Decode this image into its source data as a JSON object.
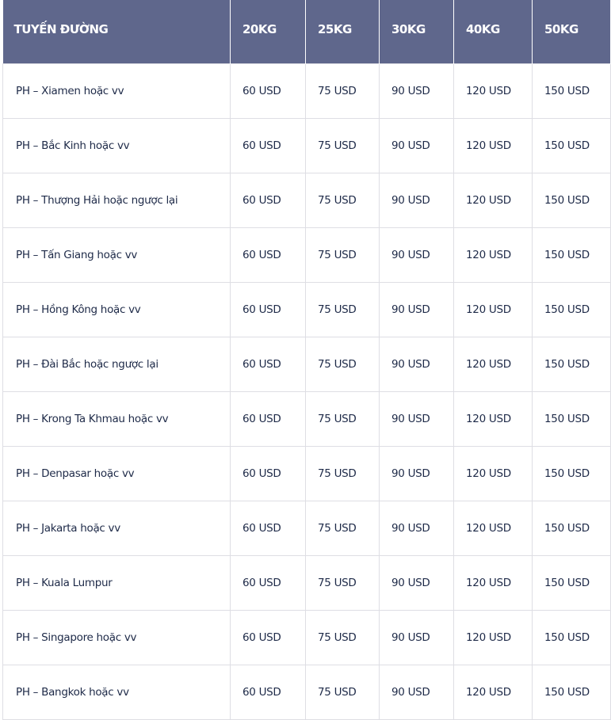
{
  "table": {
    "headers": [
      "TUYẾN ĐƯỜNG",
      "20KG",
      "25KG",
      "30KG",
      "40KG",
      "50KG"
    ],
    "rows": [
      [
        "PH – Xiamen hoặc vv",
        "60 USD",
        "75 USD",
        "90 USD",
        "120 USD",
        "150 USD"
      ],
      [
        "PH – Bắc Kinh hoặc vv",
        "60 USD",
        "75 USD",
        "90 USD",
        "120 USD",
        "150 USD"
      ],
      [
        "PH – Thượng Hải hoặc ngược lại",
        "60 USD",
        "75 USD",
        "90 USD",
        "120 USD",
        "150 USD"
      ],
      [
        "PH – Tấn Giang hoặc vv",
        "60 USD",
        "75 USD",
        "90 USD",
        "120 USD",
        "150 USD"
      ],
      [
        "PH – Hồng Kông hoặc vv",
        "60 USD",
        "75 USD",
        "90 USD",
        "120 USD",
        "150 USD"
      ],
      [
        "PH – Đài Bắc hoặc ngược lại",
        "60 USD",
        "75 USD",
        "90 USD",
        "120 USD",
        "150 USD"
      ],
      [
        "PH – Krong Ta Khmau hoặc vv",
        "60 USD",
        "75 USD",
        "90 USD",
        "120 USD",
        "150 USD"
      ],
      [
        "PH – Denpasar hoặc vv",
        "60 USD",
        "75 USD",
        "90 USD",
        "120 USD",
        "150 USD"
      ],
      [
        "PH – Jakarta hoặc vv",
        "60 USD",
        "75 USD",
        "90 USD",
        "120 USD",
        "150 USD"
      ],
      [
        "PH – Kuala Lumpur",
        "60 USD",
        "75 USD",
        "90 USD",
        "120 USD",
        "150 USD"
      ],
      [
        "PH – Singapore hoặc vv",
        "60 USD",
        "75 USD",
        "90 USD",
        "120 USD",
        "150 USD"
      ],
      [
        "PH – Bangkok hoặc vv",
        "60 USD",
        "75 USD",
        "90 USD",
        "120 USD",
        "150 USD"
      ]
    ]
  },
  "colors": {
    "header_bg": "#5f678c",
    "text": "#1e2a48"
  }
}
